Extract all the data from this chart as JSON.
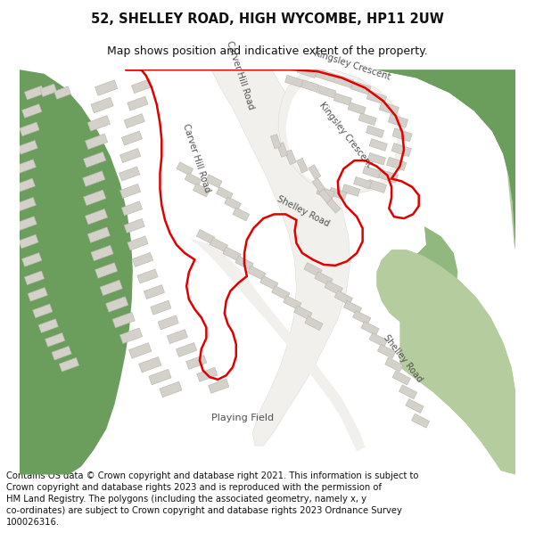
{
  "title": "52, SHELLEY ROAD, HIGH WYCOMBE, HP11 2UW",
  "subtitle": "Map shows position and indicative extent of the property.",
  "footer_line1": "Contains OS data © Crown copyright and database right 2021. This information is subject to Crown copyright and database rights 2023 and is reproduced with the permission of",
  "footer_line2": "HM Land Registry. The polygons (including the associated geometry, namely x, y co-ordinates) are subject to Crown copyright and database rights 2023 Ordnance Survey",
  "footer_line3": "100026316.",
  "bg_color": "#ffffff",
  "map_bg": "#f2f0ed",
  "green_dark": "#6b9e5c",
  "green_mid": "#91b87e",
  "green_light": "#b5cc9e",
  "road_color": "#ffffff",
  "building_color": "#d4d0ca",
  "building_outline": "#b8b4ae",
  "red_line_color": "#e00000",
  "road_label_color": "#505050",
  "title_fontsize": 10.5,
  "subtitle_fontsize": 9,
  "footer_fontsize": 7.2
}
